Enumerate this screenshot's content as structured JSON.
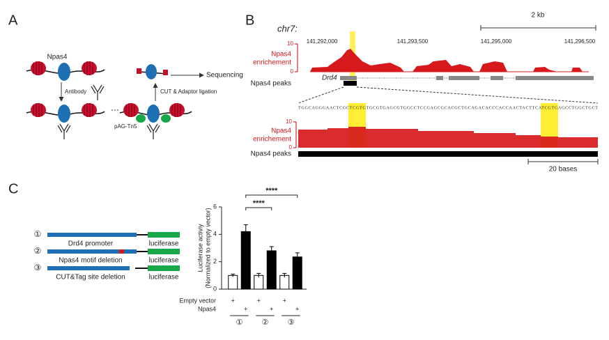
{
  "panel_a": {
    "label": "A",
    "texts": {
      "npas4": "Npas4",
      "antibody": "Antibody",
      "pag_tn5": "pAG-Tn5",
      "sequencing": "Sequencing",
      "ligation": "CUT & Adaptor ligation"
    }
  },
  "panel_b": {
    "label": "B",
    "chrom": "chr7:",
    "scale": "2 kb",
    "coordinates": [
      "141,292,000",
      "141,293,500",
      "141,295,000",
      "141,296,500"
    ],
    "track_label": [
      "Npas4",
      "enrichement"
    ],
    "track_ticks": [
      "10",
      "0"
    ],
    "zoom_ticks": [
      "10",
      "0"
    ],
    "peaks_label": "Npas4 peaks",
    "gene": "Drd4",
    "sequence": "TGGCAGGGAACTCGCTCGTGTGCGTGAGCGTGGCCTCCGAGCGCACGCTGCAGACACCCACCAACTACTTCATCGTGAGCCTGGCTGCT",
    "zoom_scale": "20 bases"
  },
  "panel_c": {
    "label": "C",
    "constructs": [
      {
        "number": "①",
        "name": "Drd4 promoter",
        "reporter": "luciferase"
      },
      {
        "number": "②",
        "name": "Npas4 motif deletion",
        "reporter": "luciferase"
      },
      {
        "number": "③",
        "name": "CUT&Tag site deletion",
        "reporter": "luciferase"
      }
    ]
  },
  "chart_data": {
    "type": "bar",
    "y_label": [
      "Luciferase activiy",
      "(Normalized to empty vector)"
    ],
    "values": [
      1.0,
      4.2,
      1.0,
      2.8,
      1.0,
      2.35
    ],
    "errors": [
      0.1,
      0.5,
      0.15,
      0.3,
      0.15,
      0.3
    ],
    "colors": [
      "#ffffff",
      "#000000",
      "#ffffff",
      "#000000",
      "#ffffff",
      "#000000"
    ],
    "ylim": [
      0,
      6
    ],
    "yticks": [
      0,
      2,
      4,
      6
    ],
    "conditions": [
      {
        "name": "Empty vector",
        "marks": [
          "+",
          null,
          "+",
          null,
          "+",
          null
        ]
      },
      {
        "name": "Npas4",
        "marks": [
          null,
          "+",
          null,
          "+",
          null,
          "+"
        ]
      }
    ],
    "groups": [
      "①",
      "②",
      "③"
    ],
    "significance": [
      "****",
      "****"
    ]
  }
}
